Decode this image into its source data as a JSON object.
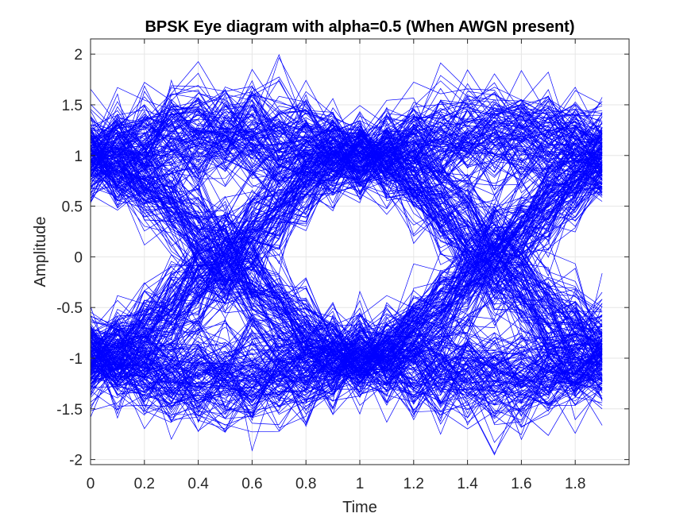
{
  "chart_data": {
    "type": "line",
    "title": "BPSK  Eye diagram with alpha=0.5 (When AWGN present)",
    "xlabel": "Time",
    "ylabel": "Amplitude",
    "xlim": [
      0,
      2.0
    ],
    "ylim": [
      -2.05,
      2.15
    ],
    "xticks": [
      0,
      0.2,
      0.4,
      0.6,
      0.8,
      1,
      1.2,
      1.4,
      1.6,
      1.8
    ],
    "xtick_labels": [
      "0",
      "0.2",
      "0.4",
      "0.6",
      "0.8",
      "1",
      "1.2",
      "1.4",
      "1.6",
      "1.8"
    ],
    "yticks": [
      -2,
      -1.5,
      -1,
      -0.5,
      0,
      0.5,
      1,
      1.5,
      2
    ],
    "ytick_labels": [
      "-2",
      "-1.5",
      "-1",
      "-0.5",
      "0",
      "0.5",
      "1",
      "1.5",
      "2"
    ],
    "grid": true,
    "line_color": "#0000ff",
    "series_description": "Overlaid noisy raised-cosine BPSK traces (alpha=0.5), each spanning 0 to 1.9 in time; amplitude levels near +1 and -1 at t=0, 1, and near 1.9, with zero crossings near t=0.5 and t=1.5",
    "trace_time": [
      0,
      0.1,
      0.2,
      0.3,
      0.4,
      0.5,
      0.6,
      0.7,
      0.8,
      0.9,
      1.0,
      1.1,
      1.2,
      1.3,
      1.4,
      1.5,
      1.6,
      1.7,
      1.8,
      1.9
    ],
    "ideal_levels": [
      1,
      -1
    ],
    "zero_crossings": [
      0.5,
      1.5
    ],
    "noise_extent": [
      -2.05,
      2.12
    ]
  }
}
